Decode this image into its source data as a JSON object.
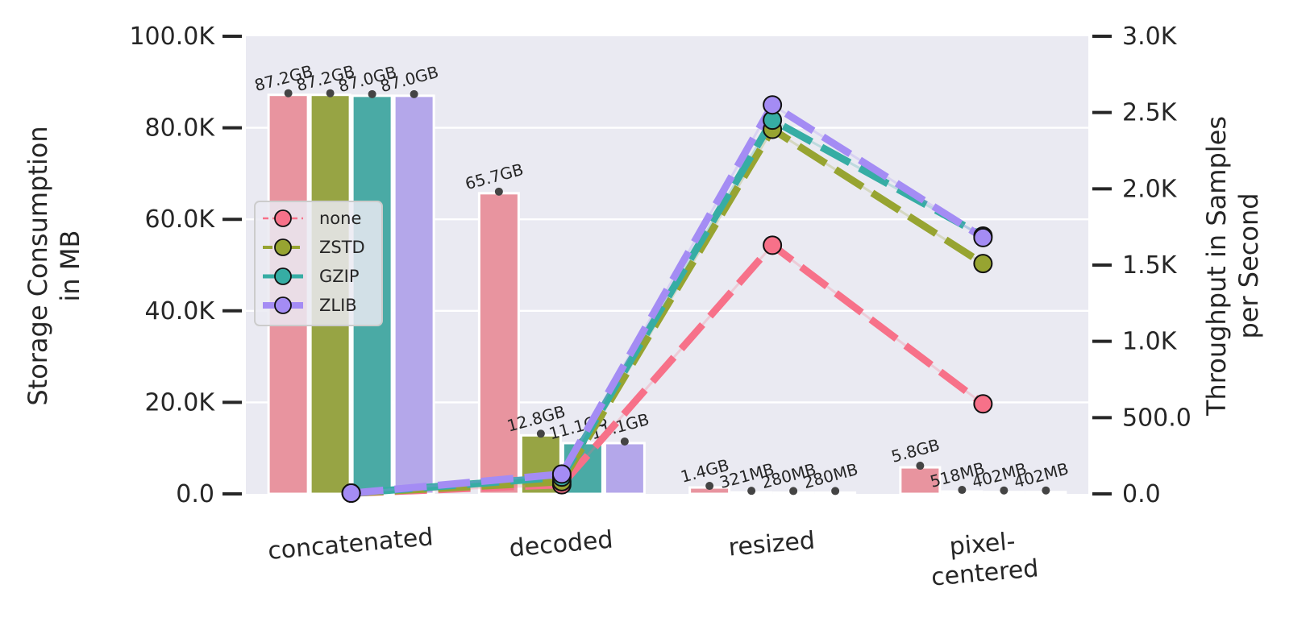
{
  "chart_data": {
    "type": "bar+line",
    "categories": [
      "concatenated",
      "decoded",
      "resized",
      "pixel-\ncentered"
    ],
    "left_axis": {
      "label": "Storage Consumption\nin MB",
      "ylim": [
        0,
        100000
      ],
      "ticks": [
        "0.0",
        "20.0K",
        "40.0K",
        "60.0K",
        "80.0K",
        "100.0K"
      ]
    },
    "right_axis": {
      "label": "Throughput in Samples\nper Second",
      "ylim": [
        0,
        3000
      ],
      "ticks": [
        "0.0",
        "500.0",
        "1.0K",
        "1.5K",
        "2.0K",
        "2.5K",
        "3.0K"
      ]
    },
    "grid": true,
    "legend": {
      "placement": "center-left"
    },
    "series": [
      {
        "name": "none",
        "color": "#f77189",
        "bar_color": "#e8949f",
        "storage_mb": [
          87200,
          65700,
          1400,
          5800
        ],
        "storage_labels": [
          "87.2GB",
          "65.7GB",
          "1.4GB",
          "5.8GB"
        ],
        "throughput": [
          5,
          60,
          1630,
          590
        ]
      },
      {
        "name": "ZSTD",
        "color": "#97a431",
        "bar_color": "#97a444",
        "storage_mb": [
          87200,
          12800,
          321,
          518
        ],
        "storage_labels": [
          "87.2GB",
          "12.8GB",
          "321MB",
          "518MB"
        ],
        "throughput": [
          5,
          80,
          2390,
          1510
        ]
      },
      {
        "name": "GZIP",
        "color": "#36ada4",
        "bar_color": "#4aaaa5",
        "storage_mb": [
          87000,
          11100,
          280,
          402
        ],
        "storage_labels": [
          "87.0GB",
          "11.1GB",
          "280MB",
          "402MB"
        ],
        "throughput": [
          5,
          110,
          2450,
          1690
        ]
      },
      {
        "name": "ZLIB",
        "color": "#a48cf4",
        "bar_color": "#b4a7ea",
        "storage_mb": [
          87000,
          11100,
          280,
          402
        ],
        "storage_labels": [
          "87.0GB",
          "11.1GB",
          "280MB",
          "402MB"
        ],
        "throughput": [
          5,
          130,
          2550,
          1680
        ]
      }
    ]
  }
}
